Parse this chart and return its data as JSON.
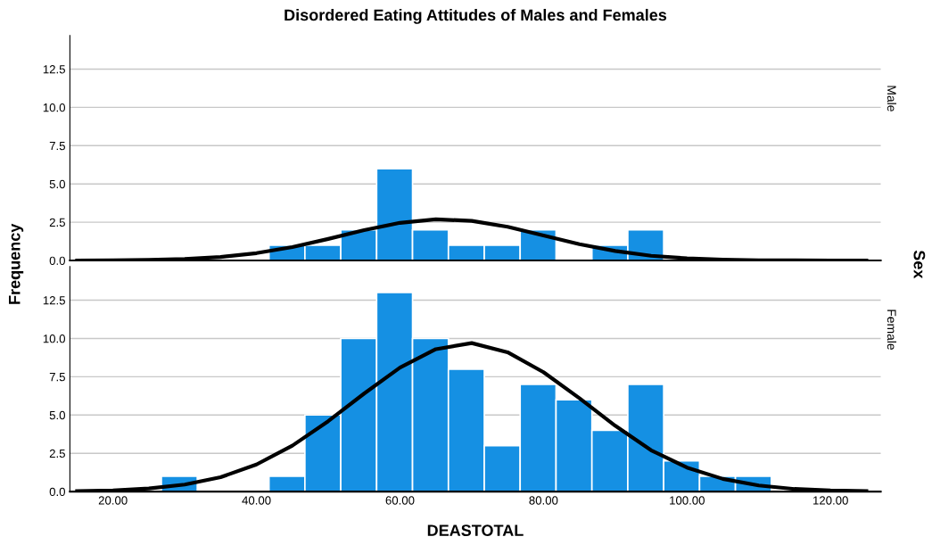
{
  "chart_data": [
    {
      "type": "histogram",
      "title": "Disordered Eating Attitudes of Males and Females",
      "ylabel": "Frequency",
      "y2label": "Male",
      "annotations": [
        "Sex"
      ],
      "bins": [
        41.75,
        46.75,
        51.75,
        56.75,
        61.75,
        66.75,
        71.75,
        76.75,
        81.75,
        86.75,
        91.75,
        96.75
      ],
      "values": [
        1,
        1,
        2,
        6,
        2,
        1,
        1,
        2,
        0,
        1,
        2
      ],
      "color": "#1590e3",
      "series": [
        {
          "type": "line",
          "color": "#000000",
          "x": [
            15,
            20,
            25,
            30,
            35,
            40,
            45,
            50,
            55,
            60,
            65,
            70,
            75,
            80,
            85,
            90,
            95,
            100,
            105,
            110,
            115,
            120,
            125
          ],
          "values": [
            0,
            0.01,
            0.04,
            0.1,
            0.23,
            0.48,
            0.88,
            1.41,
            1.98,
            2.46,
            2.69,
            2.59,
            2.2,
            1.64,
            1.07,
            0.62,
            0.31,
            0.14,
            0.06,
            0.02,
            0.01,
            0,
            0
          ]
        }
      ],
      "xlim": [
        14,
        127
      ],
      "ylim": [
        0,
        14.7
      ],
      "yticks": [
        {
          "value": 0,
          "label": "0.0"
        },
        {
          "value": 2.5,
          "label": "2.5"
        },
        {
          "value": 5,
          "label": "5.0"
        },
        {
          "value": 7.5,
          "label": "7.5"
        },
        {
          "value": 10,
          "label": "10.0"
        },
        {
          "value": 12.5,
          "label": "12.5"
        }
      ],
      "tick_labels": "y",
      "grid": "y"
    },
    {
      "type": "histogram",
      "xlabel": "DEASTOTAL",
      "y2label": "Female",
      "bins": [
        26.75,
        31.75,
        36.75,
        41.75,
        46.75,
        51.75,
        56.75,
        61.75,
        66.75,
        71.75,
        76.75,
        81.75,
        86.75,
        91.75,
        96.75,
        101.75,
        106.75,
        111.75
      ],
      "values": [
        1,
        0,
        0,
        1,
        5,
        10,
        13,
        10,
        8,
        3,
        7,
        6,
        4,
        7,
        2,
        1,
        1
      ],
      "color": "#1590e3",
      "series": [
        {
          "type": "line",
          "color": "#000000",
          "x": [
            15,
            20,
            25,
            30,
            35,
            40,
            45,
            50,
            55,
            60,
            65,
            70,
            75,
            80,
            85,
            90,
            95,
            100,
            105,
            110,
            115,
            120,
            125
          ],
          "values": [
            0.03,
            0.08,
            0.2,
            0.46,
            0.94,
            1.77,
            3.0,
            4.6,
            6.4,
            8.1,
            9.3,
            9.7,
            9.1,
            7.8,
            6.1,
            4.3,
            2.7,
            1.57,
            0.83,
            0.4,
            0.17,
            0.07,
            0.03
          ]
        }
      ],
      "xlim": [
        14,
        127
      ],
      "ylim": [
        0,
        14.7
      ],
      "xticks": [
        {
          "value": 20,
          "label": "20.00"
        },
        {
          "value": 40,
          "label": "40.00"
        },
        {
          "value": 60,
          "label": "60.00"
        },
        {
          "value": 80,
          "label": "80.00"
        },
        {
          "value": 100,
          "label": "100.00"
        },
        {
          "value": 120,
          "label": "120.00"
        }
      ],
      "yticks": [
        {
          "value": 0,
          "label": "0.0"
        },
        {
          "value": 2.5,
          "label": "2.5"
        },
        {
          "value": 5,
          "label": "5.0"
        },
        {
          "value": 7.5,
          "label": "7.5"
        },
        {
          "value": 10,
          "label": "10.0"
        },
        {
          "value": 12.5,
          "label": "12.5"
        }
      ],
      "grid": "y"
    }
  ]
}
